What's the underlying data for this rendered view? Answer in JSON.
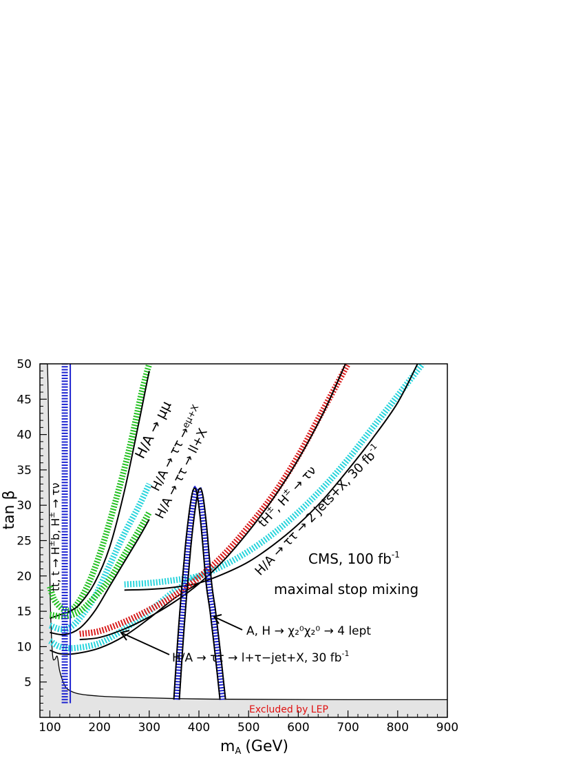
{
  "chart_data": {
    "type": "line",
    "xlabel": "m",
    "xlabel_sub": "A",
    "xlabel_unit": "(GeV)",
    "ylabel": "tan β",
    "xlim": [
      80,
      900
    ],
    "ylim": [
      0,
      50
    ],
    "xticks": [
      100,
      200,
      300,
      400,
      500,
      600,
      700,
      800,
      900
    ],
    "yticks": [
      5,
      10,
      15,
      20,
      25,
      30,
      35,
      40,
      45,
      50
    ],
    "grid": false,
    "colors": {
      "lep_fill": "#e4e4e4",
      "green": "#22c020",
      "cyan": "#28d4dc",
      "red": "#d81c1c",
      "blue": "#1a20d0",
      "black": "#000000"
    },
    "lep_excluded": {
      "x": [
        80,
        95,
        100,
        103,
        106,
        110,
        115,
        120,
        130,
        140,
        160,
        200,
        250,
        300,
        400,
        500,
        700,
        900
      ],
      "y": [
        50,
        50,
        20,
        12,
        8.5,
        8.2,
        8.6,
        6.5,
        4.5,
        3.8,
        3.3,
        3.0,
        2.85,
        2.75,
        2.6,
        2.55,
        2.5,
        2.5
      ],
      "label": "Excluded by LEP"
    },
    "series": [
      {
        "id": "mumu",
        "color": "green",
        "label": "H/A → μμ",
        "x": [
          100,
          110,
          130,
          150,
          175,
          200,
          230,
          260,
          285,
          300
        ],
        "y": [
          18.5,
          16.5,
          15.2,
          15.6,
          18.5,
          23,
          30,
          38,
          46,
          50
        ],
        "black": {
          "x": [
            100,
            120,
            140,
            160,
            190,
            220,
            250,
            280,
            300
          ],
          "y": [
            14,
            14.5,
            15,
            16,
            19,
            24,
            32,
            42,
            49
          ]
        }
      },
      {
        "id": "emu",
        "color": "cyan",
        "label": "H/A → ττ → eμ+X",
        "x": [
          100,
          120,
          140,
          160,
          190,
          220,
          250,
          280,
          300
        ],
        "y": [
          13,
          12.5,
          12.7,
          14,
          17,
          21.5,
          26,
          30,
          33
        ]
      },
      {
        "id": "ll",
        "color": "green",
        "label": "H/A → ττ → ll+X",
        "x": [
          100,
          130,
          160,
          190,
          220,
          250,
          280,
          300
        ],
        "y": [
          14.5,
          14.3,
          15,
          17,
          19.5,
          23,
          26.5,
          29
        ],
        "black": {
          "x": [
            100,
            130,
            160,
            190,
            220,
            250,
            280,
            300
          ],
          "y": [
            12,
            11.7,
            12.6,
            15,
            18.5,
            22,
            25.5,
            28
          ]
        }
      },
      {
        "id": "ltaujet",
        "color": "cyan",
        "label": "H/A → ττ → l+τ−jet+X, 30 fb⁻¹",
        "x": [
          100,
          120,
          150,
          200,
          250,
          300,
          350,
          400
        ],
        "y": [
          10.8,
          10,
          9.8,
          10.5,
          12.5,
          15,
          17.8,
          20
        ],
        "black": {
          "x": [
            100,
            120,
            150,
            200,
            250,
            300,
            350,
            400
          ],
          "y": [
            9.5,
            9,
            9,
            9.8,
            11.5,
            14,
            16.8,
            19
          ]
        }
      },
      {
        "id": "twojets",
        "color": "cyan",
        "label": "H/A → ττ → 2 jets+X, 30 fb⁻¹",
        "x": [
          250,
          300,
          350,
          400,
          450,
          500,
          550,
          600,
          650,
          700,
          750,
          800,
          850
        ],
        "y": [
          18.8,
          19,
          19.4,
          20,
          21.5,
          23.5,
          26,
          29,
          32.5,
          36.5,
          41,
          45.5,
          50
        ],
        "black": {
          "x": [
            250,
            300,
            350,
            400,
            450,
            500,
            550,
            600,
            650,
            700,
            750,
            800,
            840
          ],
          "y": [
            18,
            18.1,
            18.4,
            19,
            20.3,
            22,
            24.4,
            27.3,
            30.8,
            35,
            39.5,
            44.5,
            50
          ]
        }
      },
      {
        "id": "tH",
        "color": "red",
        "label": "tH±, H± → τν",
        "x": [
          160,
          200,
          250,
          300,
          350,
          400,
          450,
          500,
          550,
          600,
          650,
          700
        ],
        "y": [
          11.8,
          12.2,
          13.5,
          15.2,
          17.2,
          19.8,
          23,
          27,
          31.5,
          37,
          43.5,
          50
        ],
        "black": {
          "x": [
            160,
            200,
            250,
            300,
            350,
            400,
            450,
            500,
            550,
            600,
            650,
            695
          ],
          "y": [
            11,
            11.3,
            12.5,
            14.2,
            16.3,
            18.9,
            22.2,
            26.3,
            31,
            36.5,
            43,
            50
          ]
        }
      },
      {
        "id": "charged",
        "color": "blue",
        "label": "tt, t → H±b, H± → τν",
        "x": [
          130,
          130
        ],
        "y": [
          2,
          50
        ]
      },
      {
        "id": "neutralino",
        "color": "blue",
        "label": "A, H → χ₂⁰χ₂⁰ → 4 lept",
        "x": [
          355,
          365,
          378,
          388,
          395,
          402,
          410,
          420,
          428,
          438,
          448
        ],
        "y": [
          2.5,
          13,
          24,
          30,
          32.3,
          31.5,
          27,
          19,
          15,
          9,
          2.5
        ]
      }
    ],
    "annotations": {
      "cms": "CMS, 100 fb",
      "cms_sup": "-1",
      "stop": "maximal stop mixing",
      "neutralino_label": "A, H → χ₂⁰χ₂⁰ → 4 lept",
      "ltau_label": "H/A → ττ → l+τ−jet+X, 30 fb",
      "ltau_sup": "-1",
      "mumu_label": "H/A → μμ",
      "emu_label": "H/A → ττ →",
      "emu_sub": "eμ+X",
      "ll_label": "H/A → ττ → ll+X",
      "tH_label": "tH",
      "tH_sup": "±",
      "tH_rest": ", H",
      "tH_rest_sup": "±",
      "tH_decay": " → τν",
      "twojet_label": "H/A → ττ → 2 jets+X, 30 fb",
      "twojet_sup": "-1",
      "charged_label": "tt, t → H",
      "charged_sup1": "±",
      "charged_mid": "b, H",
      "charged_sup2": "±",
      "charged_decay": " → τν"
    }
  }
}
